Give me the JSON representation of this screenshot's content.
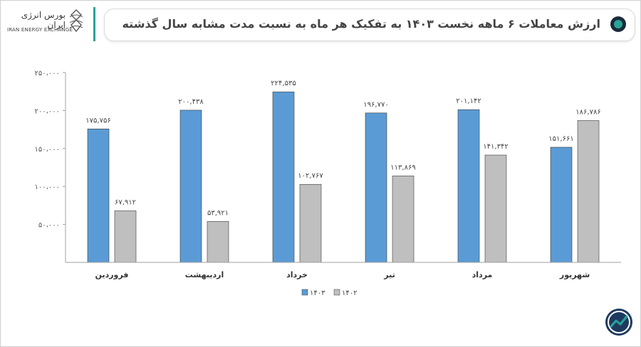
{
  "header": {
    "logo_fa": "بورس انرژی ایران",
    "logo_en": "IRAN ENERGY EXCHANGE",
    "title": "ارزش معاملات ۶ ماهه نخست ۱۴۰۳ به تفکیک هر ماه به نسبت مدت مشابه سال گذشته"
  },
  "colors": {
    "accent": "#2aa398",
    "series_1403": "#5b9bd5",
    "series_1402": "#bfbfbf"
  },
  "icons": {
    "brand": "iran-energy-exchange-logo",
    "corner": "trend-circle-logo"
  },
  "chart_data": {
    "type": "bar",
    "categories": [
      "فروردین",
      "اردیبهشت",
      "خرداد",
      "تیر",
      "مرداد",
      "شهریور"
    ],
    "series": [
      {
        "name": "۱۴۰۳",
        "values": [
          175756,
          200438,
          224535,
          196770,
          201142,
          151661
        ],
        "labels": [
          "۱۷۵,۷۵۶",
          "۲۰۰,۴۳۸",
          "۲۲۴,۵۳۵",
          "۱۹۶,۷۷۰",
          "۲۰۱,۱۴۲",
          "۱۵۱,۶۶۱"
        ]
      },
      {
        "name": "۱۴۰۲",
        "values": [
          67912,
          53921,
          102767,
          113869,
          141342,
          186786
        ],
        "labels": [
          "۶۷,۹۱۲",
          "۵۳,۹۲۱",
          "۱۰۲,۷۶۷",
          "۱۱۳,۸۶۹",
          "۱۴۱,۳۴۲",
          "۱۸۶,۷۸۶"
        ]
      }
    ],
    "ylim": [
      0,
      250000
    ],
    "y_ticks": [
      {
        "value": 50000,
        "label": "۵۰،۰۰۰"
      },
      {
        "value": 100000,
        "label": "۱۰۰،۰۰۰"
      },
      {
        "value": 150000,
        "label": "۱۵۰،۰۰۰"
      },
      {
        "value": 200000,
        "label": "۲۰۰،۰۰۰"
      },
      {
        "value": 250000,
        "label": "۲۵۰،۰۰۰"
      }
    ],
    "grid": false,
    "legend_position": "bottom-center"
  }
}
